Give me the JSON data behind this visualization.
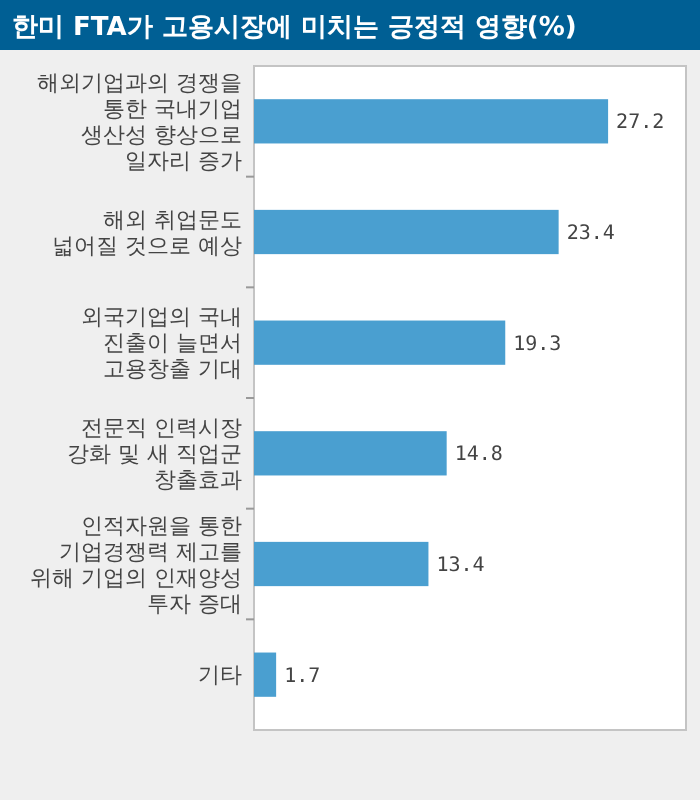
{
  "chart_data": {
    "type": "bar",
    "orientation": "horizontal",
    "title": "한미 FTA가 고용시장에 미치는 긍정적 영향(%)",
    "categories": [
      "해외기업과의 경쟁을\n통한 국내기업\n생산성 향상으로\n일자리 증가",
      "해외 취업문도\n넓어질 것으로 예상",
      "외국기업의 국내\n진출이 늘면서\n고용창출 기대",
      "전문직 인력시장\n강화 및 새 직업군\n창출효과",
      "인적자원을 통한\n기업경쟁력 제고를\n위해 기업의 인재양성\n투자 증대",
      "기타"
    ],
    "values": [
      27.2,
      23.4,
      19.3,
      14.8,
      13.4,
      1.7
    ],
    "color": "#4a9fd0",
    "data_labels": true
  }
}
